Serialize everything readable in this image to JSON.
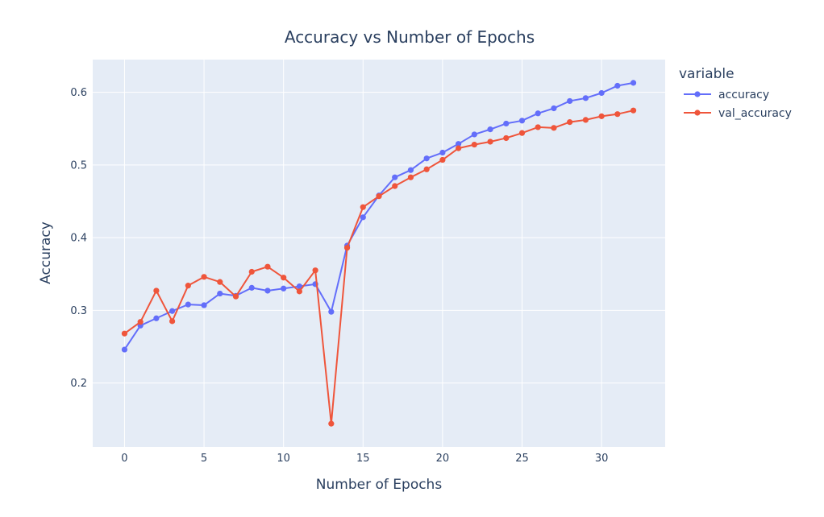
{
  "chart_data": {
    "type": "line",
    "title": "Accuracy vs Number of Epochs",
    "xlabel": "Number of Epochs",
    "ylabel": "Accuracy",
    "xlim": [
      -2,
      34
    ],
    "ylim": [
      0.112,
      0.645
    ],
    "x_ticks": [
      0,
      5,
      10,
      15,
      20,
      25,
      30
    ],
    "y_ticks": [
      0.2,
      0.3,
      0.4,
      0.5,
      0.6
    ],
    "grid": true,
    "legend": {
      "title": "variable",
      "placement": "top-right-outside"
    },
    "x": [
      0,
      1,
      2,
      3,
      4,
      5,
      6,
      7,
      8,
      9,
      10,
      11,
      12,
      13,
      14,
      15,
      16,
      17,
      18,
      19,
      20,
      21,
      22,
      23,
      24,
      25,
      26,
      27,
      28,
      29,
      30,
      31,
      32
    ],
    "series": [
      {
        "name": "accuracy",
        "color": "#636efa",
        "values": [
          0.246,
          0.279,
          0.289,
          0.299,
          0.308,
          0.307,
          0.323,
          0.32,
          0.331,
          0.327,
          0.33,
          0.333,
          0.336,
          0.298,
          0.389,
          0.428,
          0.458,
          0.483,
          0.493,
          0.509,
          0.517,
          0.529,
          0.542,
          0.549,
          0.557,
          0.561,
          0.571,
          0.578,
          0.588,
          0.592,
          0.599,
          0.609,
          0.613
        ]
      },
      {
        "name": "val_accuracy",
        "color": "#ef553b",
        "values": [
          0.268,
          0.284,
          0.327,
          0.285,
          0.334,
          0.346,
          0.339,
          0.319,
          0.353,
          0.36,
          0.345,
          0.326,
          0.355,
          0.144,
          0.386,
          0.442,
          0.457,
          0.471,
          0.483,
          0.494,
          0.507,
          0.523,
          0.528,
          0.532,
          0.537,
          0.544,
          0.552,
          0.551,
          0.559,
          0.562,
          0.567,
          0.57,
          0.575
        ]
      }
    ]
  },
  "style": {
    "plot_bg": "#e5ecf6",
    "grid_color": "#ffffff",
    "text_color": "#2a3f5f"
  }
}
